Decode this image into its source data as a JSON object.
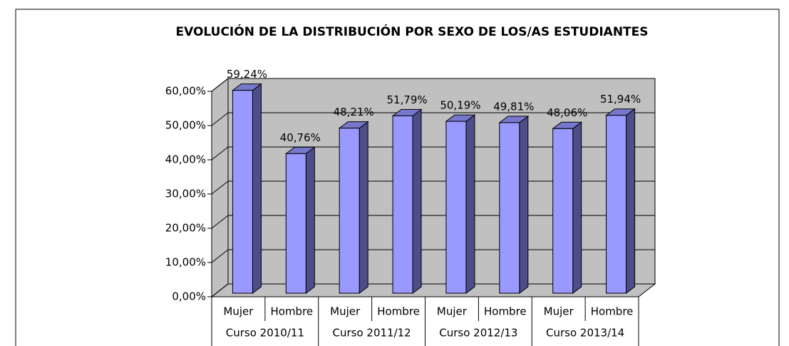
{
  "chart_data": {
    "type": "bar3d",
    "title": "EVOLUCIÓN  DE LA DISTRIBUCIÓN POR SEXO DE LOS/AS ESTUDIANTES",
    "categories": [
      "Mujer",
      "Hombre",
      "Mujer",
      "Hombre",
      "Mujer",
      "Hombre",
      "Mujer",
      "Hombre"
    ],
    "groups": [
      "Curso 2010/11",
      "Curso 2011/12",
      "Curso 2012/13",
      "Curso 2013/14"
    ],
    "values": [
      59.24,
      40.76,
      48.21,
      51.79,
      50.19,
      49.81,
      48.06,
      51.94
    ],
    "value_labels": [
      "59,24%",
      "40,76%",
      "48,21%",
      "51,79%",
      "50,19%",
      "49,81%",
      "48,06%",
      "51,94%"
    ],
    "color": "#9999ff",
    "ylim": [
      0,
      60
    ],
    "yticks": [
      {
        "value": 0,
        "label": "0,00%"
      },
      {
        "value": 10,
        "label": "10,00%"
      },
      {
        "value": 20,
        "label": "20,00%"
      },
      {
        "value": 30,
        "label": "30,00%"
      },
      {
        "value": 40,
        "label": "40,00%"
      },
      {
        "value": 50,
        "label": "50,00%"
      },
      {
        "value": 60,
        "label": "60,00%"
      }
    ],
    "grid": true
  }
}
